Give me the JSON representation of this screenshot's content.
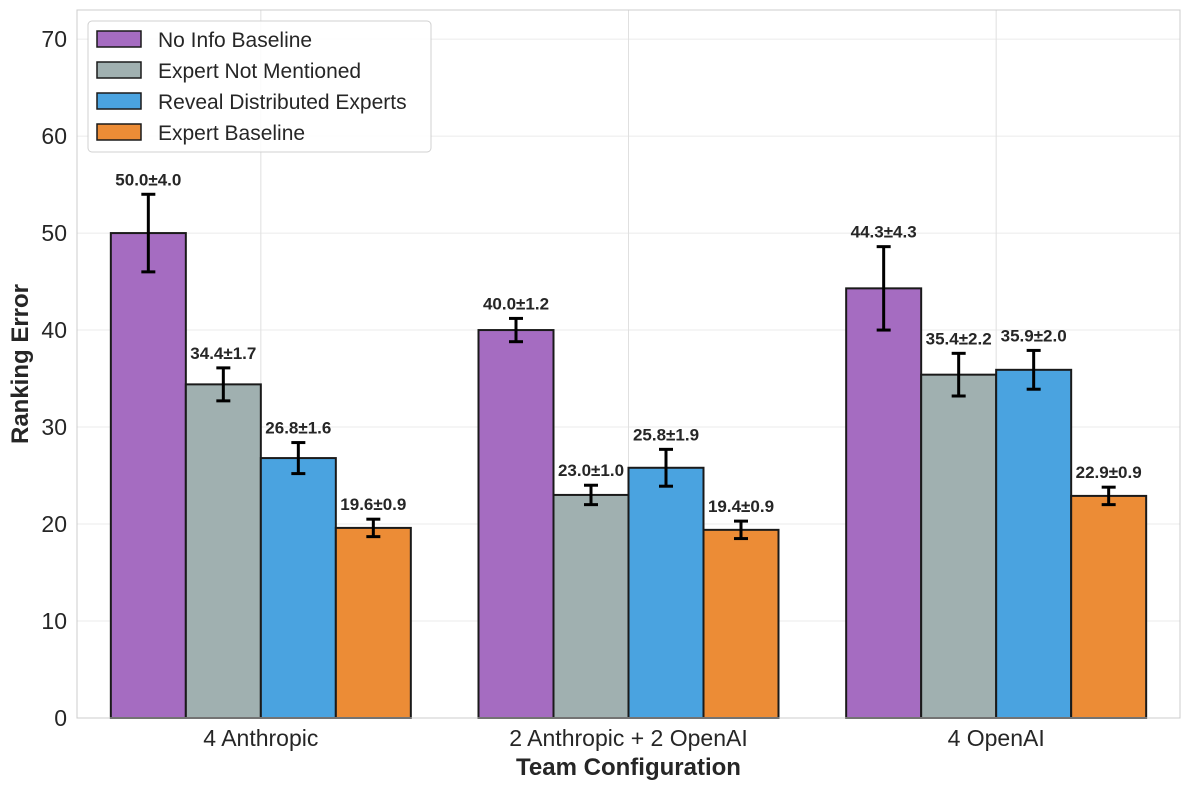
{
  "chart_data": {
    "type": "bar",
    "xlabel": "Team Configuration",
    "ylabel": "Ranking Error",
    "ylim": [
      0,
      73
    ],
    "yticks": [
      0,
      10,
      20,
      30,
      40,
      50,
      60,
      70
    ],
    "grid": true,
    "legend_position": "top-left",
    "categories": [
      "4 Anthropic",
      "2 Anthropic + 2 OpenAI",
      "4 OpenAI"
    ],
    "series": [
      {
        "name": "No Info Baseline",
        "color": "#a56cc1",
        "values": [
          50.0,
          40.0,
          44.3
        ],
        "errors": [
          4.0,
          1.2,
          4.3
        ],
        "labels": [
          "50.0±4.0",
          "40.0±1.2",
          "44.3±4.3"
        ]
      },
      {
        "name": "Expert Not Mentioned",
        "color": "#a0b0b0",
        "values": [
          34.4,
          23.0,
          35.4
        ],
        "errors": [
          1.7,
          1.0,
          2.2
        ],
        "labels": [
          "34.4±1.7",
          "23.0±1.0",
          "35.4±2.2"
        ]
      },
      {
        "name": "Reveal Distributed Experts",
        "color": "#4aa3e0",
        "values": [
          26.8,
          25.8,
          35.9
        ],
        "errors": [
          1.6,
          1.9,
          2.0
        ],
        "labels": [
          "26.8±1.6",
          "25.8±1.9",
          "35.9±2.0"
        ]
      },
      {
        "name": "Expert Baseline",
        "color": "#ec8c36",
        "values": [
          19.6,
          19.4,
          22.9
        ],
        "errors": [
          0.9,
          0.9,
          0.9
        ],
        "labels": [
          "19.6±0.9",
          "19.4±0.9",
          "22.9±0.9"
        ]
      }
    ]
  }
}
